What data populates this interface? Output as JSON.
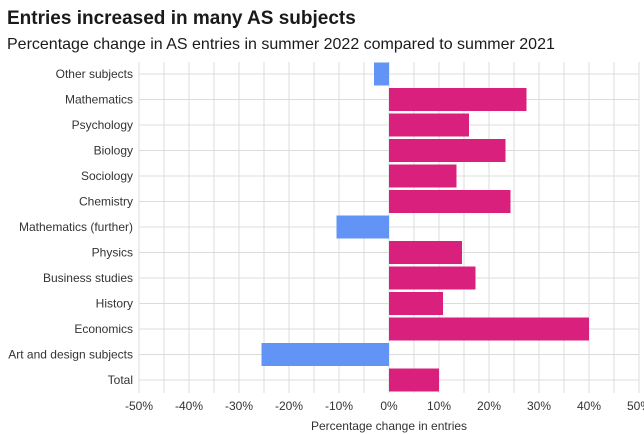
{
  "title": "Entries increased in many AS subjects",
  "subtitle": "Percentage change in AS entries in summer 2022 compared to summer 2021",
  "chart_data": {
    "type": "bar",
    "orientation": "horizontal",
    "title": "Entries increased in many AS subjects",
    "subtitle": "Percentage change in AS entries in summer 2022 compared to summer 2021",
    "xlabel": "Percentage change in entries",
    "ylabel": "",
    "xlim": [
      -50,
      50
    ],
    "xticks": [
      "-50%",
      "-40%",
      "-30%",
      "-20%",
      "-10%",
      "0%",
      "10%",
      "20%",
      "30%",
      "40%",
      "50%"
    ],
    "categories": [
      "Other subjects",
      "Mathematics",
      "Psychology",
      "Biology",
      "Sociology",
      "Chemistry",
      "Mathematics (further)",
      "Physics",
      "Business studies",
      "History",
      "Economics",
      "Art and design subjects",
      "Total"
    ],
    "values": [
      -3,
      27.5,
      16,
      23.3,
      13.5,
      24.3,
      -10.5,
      14.6,
      17.3,
      10.8,
      40,
      -25.5,
      10
    ],
    "colors": {
      "positive": "#d9207d",
      "negative": "#6294f5",
      "grid": "#dcdcdc"
    },
    "grid": true,
    "legend": "none"
  }
}
